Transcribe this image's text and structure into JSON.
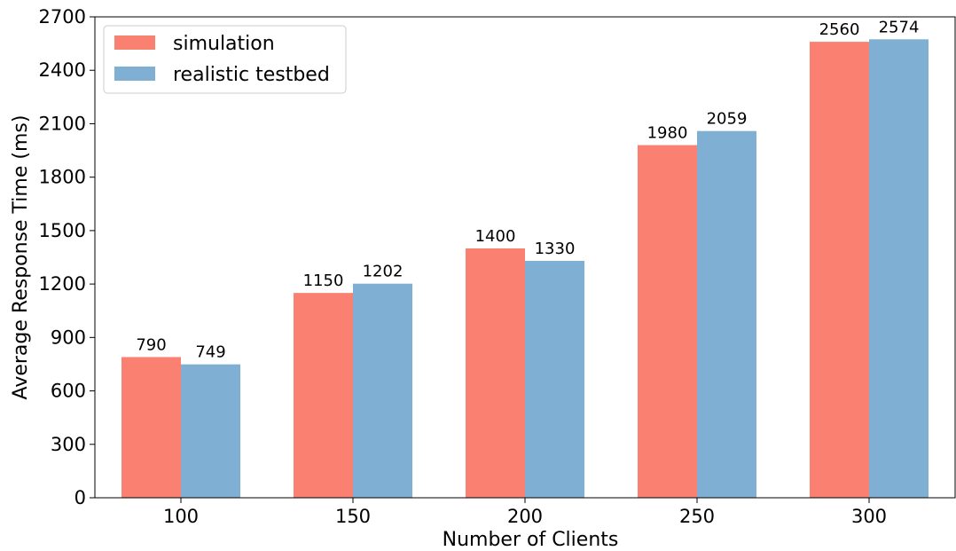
{
  "chart_data": {
    "type": "bar",
    "title": "",
    "xlabel": "Number of Clients",
    "ylabel": "Average Response Time (ms)",
    "categories": [
      "100",
      "150",
      "200",
      "250",
      "300"
    ],
    "series": [
      {
        "name": "simulation",
        "color": "#fa8072",
        "values": [
          790,
          1150,
          1400,
          1980,
          2560
        ]
      },
      {
        "name": "realistic testbed",
        "color": "#7fb0d3",
        "values": [
          749,
          1202,
          1330,
          2059,
          2574
        ]
      }
    ],
    "ylim": [
      0,
      2700
    ],
    "yticks": [
      0,
      300,
      600,
      900,
      1200,
      1500,
      1800,
      2100,
      2400,
      2700
    ],
    "legend_position": "top-left",
    "grid": false
  }
}
